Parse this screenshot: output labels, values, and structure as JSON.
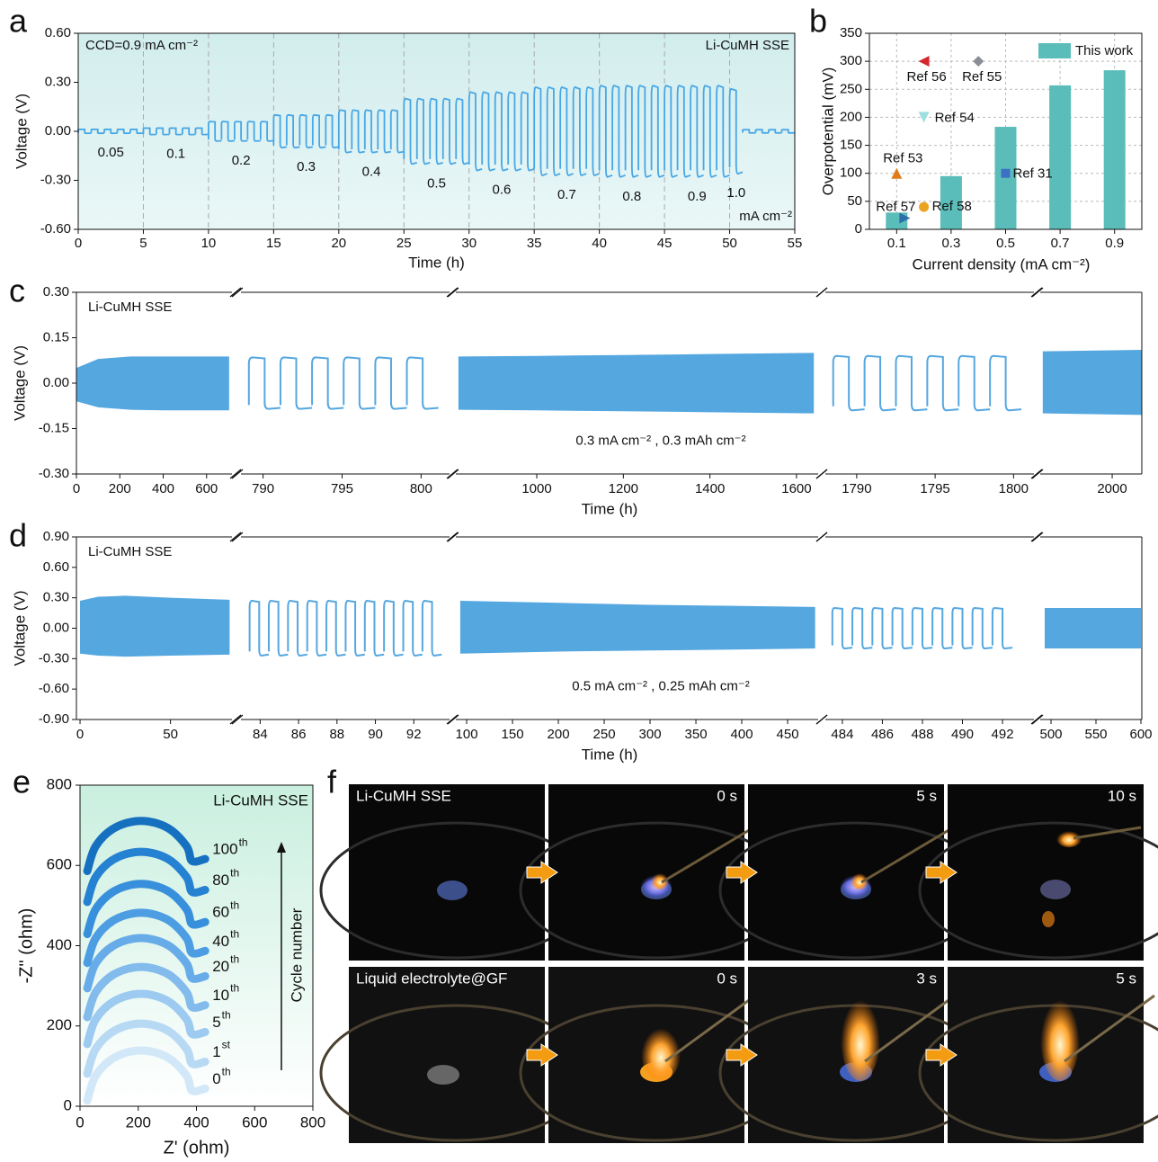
{
  "chart_data": [
    {
      "panel": "a",
      "type": "step_cycling",
      "annotations": [
        "CCD=0.9 mA cm⁻²",
        "Li-CuMH SSE"
      ],
      "xlabel": "Time (h)",
      "ylabel": "Voltage (V)",
      "xlim": [
        0,
        55
      ],
      "xticks": [
        0,
        5,
        10,
        15,
        20,
        25,
        30,
        35,
        40,
        45,
        50,
        55
      ],
      "ylim": [
        -0.6,
        0.6
      ],
      "yticks": [
        {
          "value": -0.6,
          "label": "-0.60"
        },
        {
          "value": -0.3,
          "label": "-0.30"
        },
        {
          "value": 0,
          "label": "0.00"
        },
        {
          "value": 0.3,
          "label": "0.30"
        },
        {
          "value": 0.6,
          "label": "0.60"
        }
      ],
      "grid": true,
      "color": "#47a7e6",
      "background": "#d6eeee",
      "step_labels": [
        "0.05",
        "0.1",
        "0.2",
        "0.3",
        "0.4",
        "0.5",
        "0.6",
        "0.7",
        "0.8",
        "0.9",
        "1.0",
        null
      ],
      "step_starts": [
        0,
        5,
        10,
        15,
        20,
        25,
        30,
        35,
        40,
        45,
        50,
        51
      ],
      "step_ends": [
        5,
        10,
        15,
        20,
        25,
        30,
        35,
        40,
        45,
        50,
        51,
        55
      ],
      "amplitudes": [
        0.012,
        0.02,
        0.06,
        0.1,
        0.13,
        0.2,
        0.24,
        0.27,
        0.28,
        0.28,
        0.26,
        0.01
      ],
      "unit_label": "mA cm⁻²"
    },
    {
      "panel": "b",
      "type": "bar",
      "xlabel": "Current density (mA cm⁻²)",
      "ylabel": "Overpotential (mV)",
      "xlim": [
        0,
        1
      ],
      "xticks": [
        0.1,
        0.3,
        0.5,
        0.7,
        0.9
      ],
      "ylim": [
        0,
        350
      ],
      "yticks": [
        0,
        50,
        100,
        150,
        200,
        250,
        300,
        350
      ],
      "grid": true,
      "legend": "upper right",
      "series": [
        {
          "name": "This work",
          "color": "#5bbdb9",
          "x": [
            0.1,
            0.3,
            0.5,
            0.7,
            0.9
          ],
          "values": [
            30,
            95,
            183,
            257,
            284
          ]
        },
        {
          "name": "Ref 56",
          "marker": "triangle-left",
          "color": "#d4262c",
          "x": [
            0.2
          ],
          "values": [
            300
          ]
        },
        {
          "name": "Ref 55",
          "marker": "diamond",
          "color": "#8a8e99",
          "x": [
            0.4
          ],
          "values": [
            300
          ]
        },
        {
          "name": "Ref 54",
          "marker": "triangle-down",
          "color": "#9fdede",
          "x": [
            0.2
          ],
          "values": [
            200
          ]
        },
        {
          "name": "Ref 53",
          "marker": "triangle-up",
          "color": "#e07b1a",
          "x": [
            0.1
          ],
          "values": [
            100
          ]
        },
        {
          "name": "Ref 31",
          "marker": "square",
          "color": "#3b72c4",
          "x": [
            0.5
          ],
          "values": [
            100
          ]
        },
        {
          "name": "Ref 57",
          "marker": "triangle-right",
          "color": "#2a6fa8",
          "x": [
            0.13
          ],
          "values": [
            20
          ]
        },
        {
          "name": "Ref 58",
          "marker": "circle",
          "color": "#eaa520",
          "x": [
            0.2
          ],
          "values": [
            40
          ]
        }
      ]
    },
    {
      "panel": "c",
      "type": "broken_axis_cycling",
      "annotation": "Li-CuMH SSE",
      "condition": "0.3 mA cm⁻² ,   0.3 mAh cm⁻²",
      "xlabel": "Time (h)",
      "ylabel": "Voltage (V)",
      "color": "#55a7e0",
      "ylim": [
        -0.3,
        0.3
      ],
      "yticks": [
        {
          "value": -0.3,
          "label": "-0.30"
        },
        {
          "value": -0.15,
          "label": "-0.15"
        },
        {
          "value": 0,
          "label": "0.00"
        },
        {
          "value": 0.15,
          "label": "0.15"
        },
        {
          "value": 0.3,
          "label": "0.30"
        }
      ],
      "segments": [
        {
          "kind": "dense",
          "xlim": [
            0,
            717
          ],
          "xticks": [
            0,
            200,
            400,
            600
          ],
          "x": [
            0,
            100,
            250,
            400,
            704
          ],
          "upper": [
            0.05,
            0.08,
            0.088,
            0.088,
            0.088
          ],
          "lower": [
            -0.06,
            -0.08,
            -0.088,
            -0.09,
            -0.09
          ]
        },
        {
          "kind": "cycles",
          "xlim": [
            788.6,
            801.8
          ],
          "xticks": [
            790,
            795,
            800
          ],
          "x": [
            789.1,
            791.1,
            793.1,
            795.1,
            797.1,
            799.1
          ],
          "amplitude": 0.085
        },
        {
          "kind": "dense",
          "xlim": [
            813,
            1650
          ],
          "xticks": [
            1000,
            1200,
            1400,
            1600
          ],
          "x": [
            819,
            1000,
            1200,
            1400,
            1640
          ],
          "upper": [
            0.088,
            0.09,
            0.093,
            0.096,
            0.1
          ],
          "lower": [
            -0.088,
            -0.09,
            -0.093,
            -0.096,
            -0.1
          ]
        },
        {
          "kind": "cycles",
          "xlim": [
            1788,
            1801.3
          ],
          "xticks": [
            1790,
            1795,
            1800
          ],
          "x": [
            1788.5,
            1790.5,
            1792.5,
            1794.5,
            1796.5,
            1798.5
          ],
          "amplitude": 0.09
        },
        {
          "kind": "dense",
          "xlim": [
            1830,
            2070
          ],
          "xticks": [
            2000
          ],
          "x": [
            1836,
            2070
          ],
          "upper": [
            0.105,
            0.11
          ],
          "lower": [
            -0.1,
            -0.105
          ]
        }
      ]
    },
    {
      "panel": "d",
      "type": "broken_axis_cycling",
      "annotation": "Li-CuMH SSE",
      "condition": "0.5 mA cm⁻² , 0.25 mAh cm⁻²",
      "xlabel": "Time (h)",
      "ylabel": "Voltage (V)",
      "color": "#55a7e0",
      "ylim": [
        -0.9,
        0.9
      ],
      "yticks": [
        {
          "value": -0.9,
          "label": "-0.90"
        },
        {
          "value": -0.6,
          "label": "-0.60"
        },
        {
          "value": -0.3,
          "label": "-0.30"
        },
        {
          "value": 0,
          "label": "0.00"
        },
        {
          "value": 0.3,
          "label": "0.30"
        },
        {
          "value": 0.6,
          "label": "0.60"
        },
        {
          "value": 0.9,
          "label": "0.90"
        }
      ],
      "segments": [
        {
          "kind": "dense",
          "xlim": [
            -2,
            84
          ],
          "xticks": [
            0,
            50
          ],
          "x": [
            0,
            10,
            25,
            50,
            82.7
          ],
          "upper": [
            0.27,
            0.31,
            0.32,
            0.3,
            0.28
          ],
          "lower": [
            -0.25,
            -0.27,
            -0.28,
            -0.27,
            -0.26
          ]
        },
        {
          "kind": "cycles",
          "xlim": [
            83,
            93.86
          ],
          "xticks": [
            84,
            86,
            88,
            90,
            92
          ],
          "x": [
            83.45,
            84.45,
            85.45,
            86.45,
            87.45,
            88.45,
            89.45,
            90.45,
            91.45,
            92.45
          ],
          "amplitude": 0.27
        },
        {
          "kind": "dense",
          "xlim": [
            88.2,
            483.3
          ],
          "xticks": [
            100,
            150,
            200,
            250,
            300,
            350,
            400,
            450
          ],
          "x": [
            93,
            200,
            300,
            400,
            480
          ],
          "upper": [
            0.27,
            0.25,
            0.23,
            0.22,
            0.21
          ],
          "lower": [
            -0.25,
            -0.23,
            -0.22,
            -0.21,
            -0.2
          ]
        },
        {
          "kind": "cycles",
          "xlim": [
            483.15,
            493.57
          ],
          "xticks": [
            484,
            486,
            488,
            490,
            492
          ],
          "x": [
            483.5,
            484.5,
            485.5,
            486.5,
            487.5,
            488.5,
            489.5,
            490.5,
            491.5
          ],
          "amplitude": 0.2
        },
        {
          "kind": "dense",
          "xlim": [
            488,
            601
          ],
          "xticks": [
            500,
            550,
            600
          ],
          "x": [
            493,
            600
          ],
          "upper": [
            0.2,
            0.2
          ],
          "lower": [
            -0.2,
            -0.2
          ]
        }
      ]
    },
    {
      "panel": "e",
      "type": "line",
      "annotation": "Li-CuMH SSE",
      "arrow_label": "Cycle number",
      "xlabel": "Z' (ohm)",
      "ylabel": "-Z\" (ohm)",
      "background": "#d3f0e4",
      "xlim": [
        0,
        800
      ],
      "xticks": [
        0,
        200,
        400,
        600,
        800
      ],
      "ylim": [
        0,
        800
      ],
      "yticks": [
        0,
        200,
        400,
        600,
        800
      ],
      "x": [
        25,
        54,
        120,
        210,
        300,
        366,
        385,
        430
      ],
      "series": [
        {
          "name": "0",
          "name_sup": "th",
          "color": "#d2e8f8",
          "values": [
            14,
            76,
            122,
            139,
            122,
            76,
            39,
            44
          ]
        },
        {
          "name": "1",
          "name_sup": "st",
          "color": "#b7d9f4",
          "values": [
            81,
            143,
            189,
            206,
            189,
            143,
            106,
            111
          ]
        },
        {
          "name": "5",
          "name_sup": "th",
          "color": "#9dcaf0",
          "values": [
            155,
            217,
            263,
            280,
            263,
            217,
            180,
            185
          ]
        },
        {
          "name": "10",
          "name_sup": "th",
          "color": "#82bbec",
          "values": [
            222,
            284,
            330,
            347,
            330,
            284,
            247,
            252
          ]
        },
        {
          "name": "20",
          "name_sup": "th",
          "color": "#67ace8",
          "values": [
            294,
            356,
            402,
            419,
            402,
            356,
            319,
            324
          ]
        },
        {
          "name": "40",
          "name_sup": "th",
          "color": "#4d9de3",
          "values": [
            357,
            419,
            465,
            482,
            465,
            419,
            382,
            387
          ]
        },
        {
          "name": "60",
          "name_sup": "th",
          "color": "#3890dc",
          "values": [
            429,
            491,
            537,
            554,
            537,
            491,
            454,
            459
          ]
        },
        {
          "name": "80",
          "name_sup": "th",
          "color": "#2581d2",
          "values": [
            509,
            571,
            617,
            634,
            617,
            571,
            534,
            539
          ]
        },
        {
          "name": "100",
          "name_sup": "th",
          "color": "#1670c0",
          "values": [
            586,
            648,
            694,
            711,
            694,
            648,
            611,
            616
          ]
        }
      ]
    }
  ],
  "photo_panel": {
    "label": "f",
    "rows": [
      [
        "Li-CuMH SSE",
        "0 s",
        "5 s",
        "10 s"
      ],
      [
        "Liquid electrolyte@GF",
        "0 s",
        "3 s",
        "5 s"
      ]
    ]
  }
}
